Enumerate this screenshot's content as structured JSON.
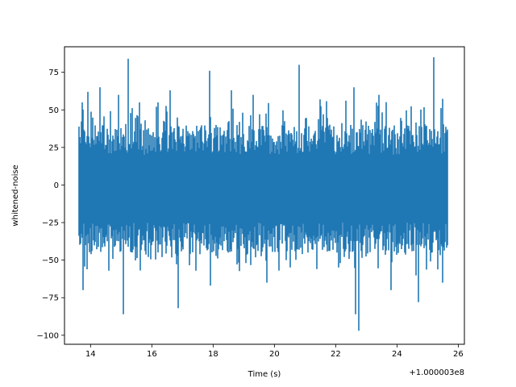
{
  "chart_data": {
    "type": "line",
    "xlabel": "Time (s)",
    "ylabel": "whitened-noise",
    "x_offset_label": "+1.000003e8",
    "xlim": [
      13.15,
      26.2
    ],
    "ylim": [
      -106,
      92
    ],
    "xticks": [
      14,
      16,
      18,
      20,
      22,
      24,
      26
    ],
    "xtick_labels": [
      "14",
      "16",
      "18",
      "20",
      "22",
      "24",
      "26"
    ],
    "yticks": [
      -100,
      -75,
      -50,
      -25,
      0,
      25,
      50,
      75
    ],
    "ytick_labels": [
      "−100",
      "−75",
      "−50",
      "−25",
      "0",
      "25",
      "50",
      "75"
    ],
    "grid": false,
    "series": [
      {
        "color": "#1f77b4",
        "x_start": 13.6,
        "x_end": 25.65,
        "typical_range": [
          -35,
          30
        ],
        "peaks": [
          {
            "x": 13.72,
            "y": 55
          },
          {
            "x": 13.75,
            "y": -70
          },
          {
            "x": 13.9,
            "y": 62
          },
          {
            "x": 14.3,
            "y": 65
          },
          {
            "x": 14.6,
            "y": -57
          },
          {
            "x": 14.9,
            "y": 60
          },
          {
            "x": 15.08,
            "y": -86
          },
          {
            "x": 15.23,
            "y": 84
          },
          {
            "x": 15.6,
            "y": 55
          },
          {
            "x": 16.2,
            "y": 55
          },
          {
            "x": 16.6,
            "y": 63
          },
          {
            "x": 16.85,
            "y": -82
          },
          {
            "x": 17.45,
            "y": -57
          },
          {
            "x": 17.88,
            "y": 76
          },
          {
            "x": 17.9,
            "y": -67
          },
          {
            "x": 18.6,
            "y": 63
          },
          {
            "x": 19.3,
            "y": 60
          },
          {
            "x": 19.75,
            "y": -65
          },
          {
            "x": 20.8,
            "y": 80
          },
          {
            "x": 21.5,
            "y": 57
          },
          {
            "x": 22.6,
            "y": 65
          },
          {
            "x": 22.65,
            "y": -86
          },
          {
            "x": 22.75,
            "y": -97
          },
          {
            "x": 23.4,
            "y": 60
          },
          {
            "x": 23.8,
            "y": -70
          },
          {
            "x": 24.7,
            "y": -78
          },
          {
            "x": 25.2,
            "y": 85
          },
          {
            "x": 25.5,
            "y": -65
          }
        ]
      }
    ]
  }
}
